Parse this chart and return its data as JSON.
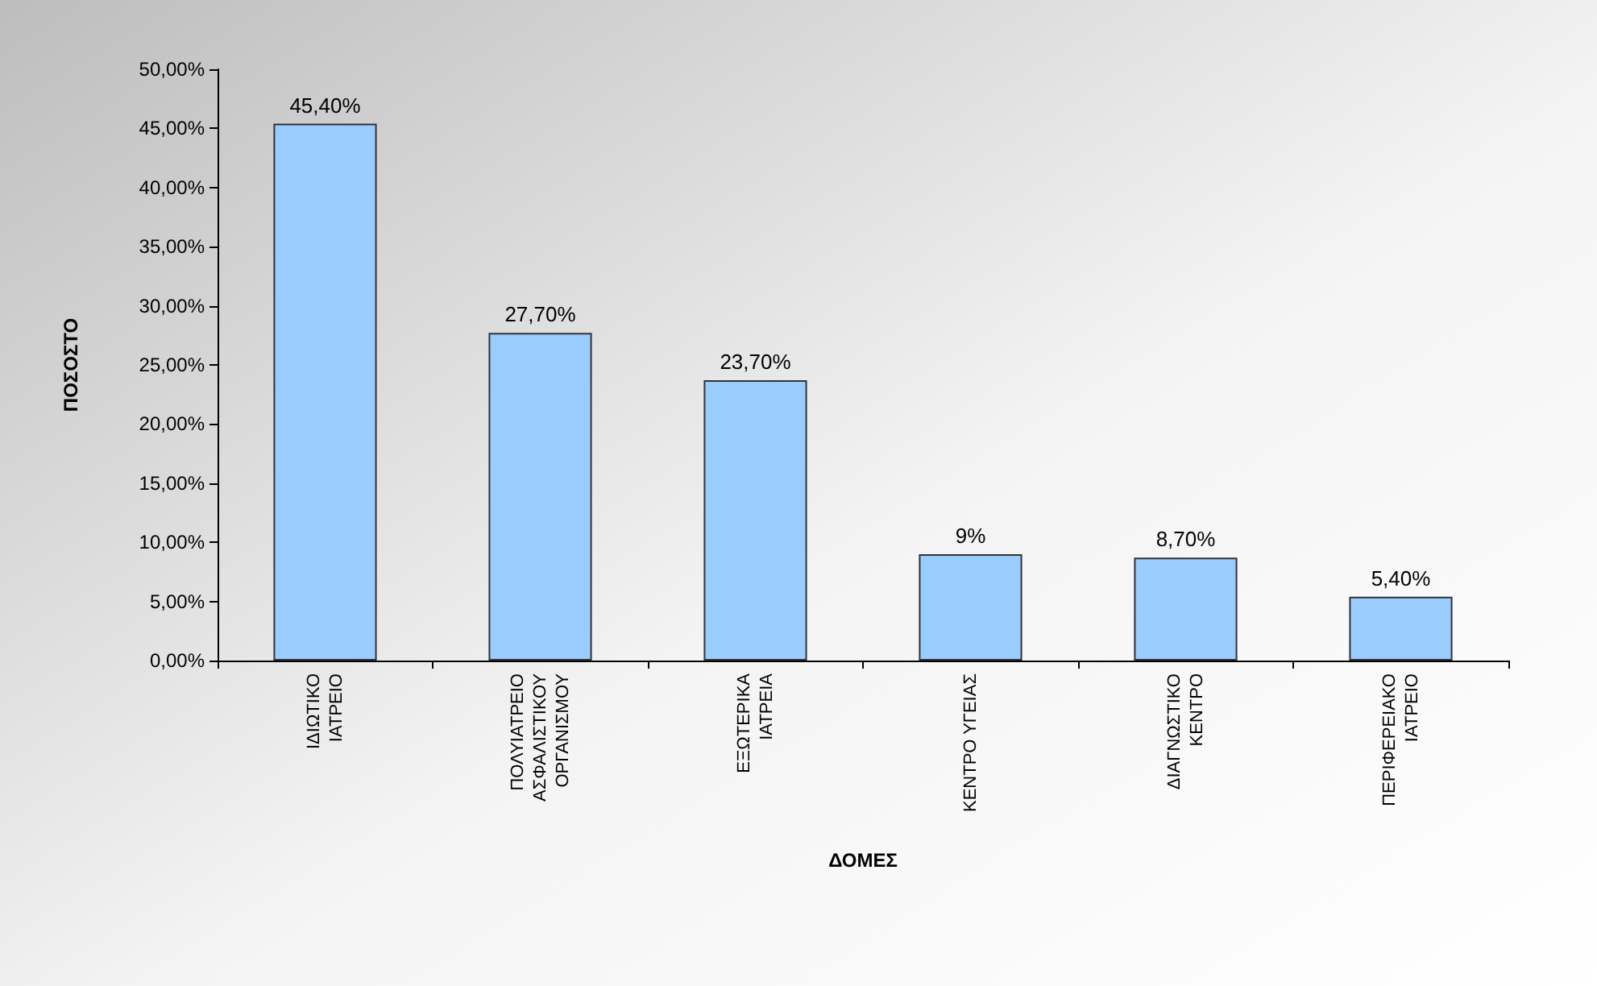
{
  "chart_data": {
    "type": "bar",
    "xlabel": "ΔΟΜΕΣ",
    "ylabel": "ΠΟΣΟΣΤΟ",
    "categories": [
      "ΙΔΙΩΤΙΚΟ ΙΑΤΡΕΙΟ",
      "ΠΟΛΥΙΑΤΡΕΙΟ ΑΣΦΑΛΙΣΤΙΚΟΥ ΟΡΓΑΝΙΣΜΟΥ",
      "ΕΞΩΤΕΡΙΚΑ ΙΑΤΡΕΙΑ",
      "ΚΕΝΤΡΟ ΥΓΕΙΑΣ",
      "ΔΙΑΓΝΩΣΤΙΚΟ ΚΕΝΤΡΟ",
      "ΠΕΡΙΦΕΡΕΙΑΚΟ ΙΑΤΡΕΙΟ"
    ],
    "values": [
      45.4,
      27.7,
      23.7,
      9,
      8.7,
      5.4
    ],
    "value_labels": [
      "45,40%",
      "27,70%",
      "23,70%",
      "9%",
      "8,70%",
      "5,40%"
    ],
    "color": "#99ccff",
    "ylim": [
      0,
      50
    ],
    "yticks": [
      {
        "value": 0,
        "label": "0,00%"
      },
      {
        "value": 5,
        "label": "5,00%"
      },
      {
        "value": 10,
        "label": "10,00%"
      },
      {
        "value": 15,
        "label": "15,00%"
      },
      {
        "value": 20,
        "label": "20,00%"
      },
      {
        "value": 25,
        "label": "25,00%"
      },
      {
        "value": 30,
        "label": "30,00%"
      },
      {
        "value": 35,
        "label": "35,00%"
      },
      {
        "value": 40,
        "label": "40,00%"
      },
      {
        "value": 45,
        "label": "45,00%"
      },
      {
        "value": 50,
        "label": "50,00%"
      }
    ],
    "grid": false
  }
}
